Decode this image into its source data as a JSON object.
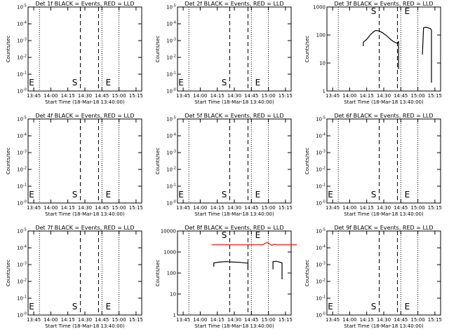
{
  "chart_data": [
    {
      "type": "line",
      "title": "Det 1f BLACK = Events, RED = LLD",
      "xlabel": "Start Time (18-Mar-18 13:40:00)",
      "ylabel": "Counts/sec",
      "y_scale": "log",
      "x_ticks": [
        "13:45",
        "14:00",
        "14:15",
        "14:30",
        "14:45",
        "15:00",
        "15:15"
      ],
      "y_ticks": [
        "10^-0",
        "10^-1",
        "10^-2",
        "10^-3",
        "10^-4",
        "10^-5"
      ],
      "markers": [
        {
          "label": "S",
          "time": "14:26"
        },
        {
          "label": "E",
          "time": "14:42"
        }
      ],
      "dotted_times": [
        "13:50",
        "14:45",
        "15:00"
      ],
      "dashed_times": [
        "14:26",
        "14:42"
      ],
      "series": []
    },
    {
      "type": "line",
      "title": "Det 2f BLACK = Events, RED = LLD",
      "xlabel": "Start Time (18-Mar-18 13:40:00)",
      "ylabel": "Counts/sec",
      "y_scale": "log",
      "x_ticks": [
        "13:45",
        "14:00",
        "14:15",
        "14:30",
        "14:45",
        "15:00",
        "15:15"
      ],
      "y_ticks": [
        "10^-0",
        "10^-1",
        "10^-2",
        "10^-3",
        "10^-4",
        "10^-5"
      ],
      "markers": [
        {
          "label": "S",
          "time": "14:26"
        },
        {
          "label": "E",
          "time": "14:42"
        }
      ],
      "dotted_times": [
        "13:50",
        "14:45",
        "15:00"
      ],
      "dashed_times": [
        "14:26",
        "14:42"
      ],
      "series": []
    },
    {
      "type": "line",
      "title": "Det 3f BLACK = Events, RED = LLD",
      "xlabel": "Start Time (18-Mar-18 13:40:00)",
      "ylabel": "Counts/sec",
      "y_scale": "log",
      "x_ticks": [
        "13:45",
        "14:00",
        "14:15",
        "14:30",
        "14:45",
        "15:00",
        "15:15"
      ],
      "y_ticks": [
        "1",
        "10",
        "100",
        "1000"
      ],
      "markers": [
        {
          "label": "S",
          "time": "14:26"
        },
        {
          "label": "E",
          "time": "14:42"
        }
      ],
      "dotted_times": [
        "13:50",
        "14:45",
        "15:00"
      ],
      "dashed_times": [
        "14:26",
        "14:42"
      ],
      "series": [
        {
          "color": "#000000",
          "points": [
            [
              -3,
              40
            ],
            [
              -3,
              55
            ],
            [
              0,
              70
            ],
            [
              3,
              100
            ],
            [
              6,
              130
            ],
            [
              8,
              145
            ],
            [
              11,
              140
            ],
            [
              14,
              120
            ],
            [
              18,
              90
            ],
            [
              21,
              70
            ],
            [
              23,
              60
            ],
            [
              25,
              55
            ],
            [
              27,
              50
            ],
            [
              28,
              60
            ],
            [
              28,
              6
            ]
          ]
        },
        {
          "color": "#000000",
          "points": [
            [
              49,
              20
            ],
            [
              50,
              180
            ],
            [
              52,
              190
            ],
            [
              54,
              180
            ],
            [
              56,
              170
            ],
            [
              57,
              150
            ],
            [
              57,
              2
            ]
          ]
        }
      ]
    },
    {
      "type": "line",
      "title": "Det 4f BLACK = Events, RED = LLD",
      "xlabel": "Start Time (18-Mar-18 13:40:00)",
      "ylabel": "Counts/sec",
      "y_scale": "log",
      "x_ticks": [
        "13:45",
        "14:00",
        "14:15",
        "14:30",
        "14:45",
        "15:00",
        "15:15"
      ],
      "y_ticks": [
        "10^-0",
        "10^-1",
        "10^-2",
        "10^-3",
        "10^-4",
        "10^-5"
      ],
      "markers": [
        {
          "label": "S",
          "time": "14:26"
        },
        {
          "label": "E",
          "time": "14:42"
        }
      ],
      "dotted_times": [
        "13:50",
        "14:45",
        "15:00"
      ],
      "dashed_times": [
        "14:26",
        "14:42"
      ],
      "series": []
    },
    {
      "type": "line",
      "title": "Det 5f BLACK = Events, RED = LLD",
      "xlabel": "Start Time (18-Mar-18 13:40:00)",
      "ylabel": "Counts/sec",
      "y_scale": "log",
      "x_ticks": [
        "13:45",
        "14:00",
        "14:15",
        "14:30",
        "14:45",
        "15:00",
        "15:15"
      ],
      "y_ticks": [
        "10^-0",
        "10^-1",
        "10^-2",
        "10^-3",
        "10^-4",
        "10^-5"
      ],
      "markers": [
        {
          "label": "S",
          "time": "14:26"
        },
        {
          "label": "E",
          "time": "14:42"
        }
      ],
      "dotted_times": [
        "13:50",
        "14:45",
        "15:00"
      ],
      "dashed_times": [
        "14:26",
        "14:42"
      ],
      "series": []
    },
    {
      "type": "line",
      "title": "Det 6f BLACK = Events, RED = LLD",
      "xlabel": "Start Time (18-Mar-18 13:40:00)",
      "ylabel": "Counts/sec",
      "y_scale": "log",
      "x_ticks": [
        "13:45",
        "14:00",
        "14:15",
        "14:30",
        "14:45",
        "15:00",
        "15:15"
      ],
      "y_ticks": [
        "10^-0",
        "10^-1",
        "10^-2",
        "10^-3",
        "10^-4",
        "10^-5"
      ],
      "markers": [
        {
          "label": "S",
          "time": "14:26"
        },
        {
          "label": "E",
          "time": "14:42"
        }
      ],
      "dotted_times": [
        "13:50",
        "14:45",
        "15:00"
      ],
      "dashed_times": [
        "14:26",
        "14:42"
      ],
      "series": []
    },
    {
      "type": "line",
      "title": "Det 7f BLACK = Events, RED = LLD",
      "xlabel": "Start Time (18-Mar-18 13:40:00)",
      "ylabel": "Counts/sec",
      "y_scale": "log",
      "x_ticks": [
        "13:45",
        "14:00",
        "14:15",
        "14:30",
        "14:45",
        "15:00",
        "15:15"
      ],
      "y_ticks": [
        "10^-0",
        "10^-1",
        "10^-2",
        "10^-3",
        "10^-4",
        "10^-5"
      ],
      "markers": [
        {
          "label": "S",
          "time": "14:26"
        },
        {
          "label": "E",
          "time": "14:42"
        }
      ],
      "dotted_times": [
        "13:50",
        "14:45",
        "15:00"
      ],
      "dashed_times": [
        "14:26",
        "14:42"
      ],
      "series": []
    },
    {
      "type": "line",
      "title": "Det 8f BLACK = Events, RED = LLD",
      "xlabel": "Start Time (18-Mar-18 13:40:00)",
      "ylabel": "Counts/sec",
      "y_scale": "log",
      "x_ticks": [
        "13:45",
        "14:00",
        "14:15",
        "14:30",
        "14:45",
        "15:00",
        "15:15"
      ],
      "y_ticks": [
        "1",
        "10",
        "100",
        "1000",
        "10000"
      ],
      "markers": [
        {
          "label": "S",
          "time": "14:26"
        },
        {
          "label": "E",
          "time": "14:42"
        }
      ],
      "dotted_times": [
        "13:50",
        "14:45",
        "15:00"
      ],
      "dashed_times": [
        "14:26",
        "14:42"
      ],
      "series": [
        {
          "color": "#ff0000",
          "points": [
            [
              -5,
              2200
            ],
            [
              10,
              2200
            ],
            [
              30,
              2200
            ],
            [
              40,
              2200
            ],
            [
              42,
              2600
            ],
            [
              44,
              2800
            ],
            [
              46,
              2400
            ],
            [
              48,
              2100
            ],
            [
              50,
              2300
            ],
            [
              52,
              2200
            ],
            [
              70,
              2200
            ]
          ]
        },
        {
          "color": "#000000",
          "points": [
            [
              -3,
              200
            ],
            [
              -3,
              300
            ],
            [
              2,
              330
            ],
            [
              8,
              350
            ],
            [
              14,
              330
            ],
            [
              20,
              320
            ],
            [
              25,
              300
            ],
            [
              27,
              300
            ],
            [
              27,
              150
            ]
          ]
        },
        {
          "color": "#000000",
          "points": [
            [
              49,
              150
            ],
            [
              49,
              350
            ],
            [
              52,
              360
            ],
            [
              55,
              330
            ],
            [
              57,
              300
            ],
            [
              57,
              50
            ]
          ]
        }
      ]
    },
    {
      "type": "line",
      "title": "Det 9f BLACK = Events, RED = LLD",
      "xlabel": "Start Time (18-Mar-18 13:40:00)",
      "ylabel": "Counts/sec",
      "y_scale": "log",
      "x_ticks": [
        "13:45",
        "14:00",
        "14:15",
        "14:30",
        "14:45",
        "15:00",
        "15:15"
      ],
      "y_ticks": [
        "10^-0",
        "10^-1",
        "10^-2",
        "10^-3",
        "10^-4",
        "10^-5"
      ],
      "markers": [
        {
          "label": "S",
          "time": "14:26"
        },
        {
          "label": "E",
          "time": "14:42"
        }
      ],
      "dotted_times": [
        "13:50",
        "14:45",
        "15:00"
      ],
      "dashed_times": [
        "14:26",
        "14:42"
      ],
      "series": []
    }
  ]
}
